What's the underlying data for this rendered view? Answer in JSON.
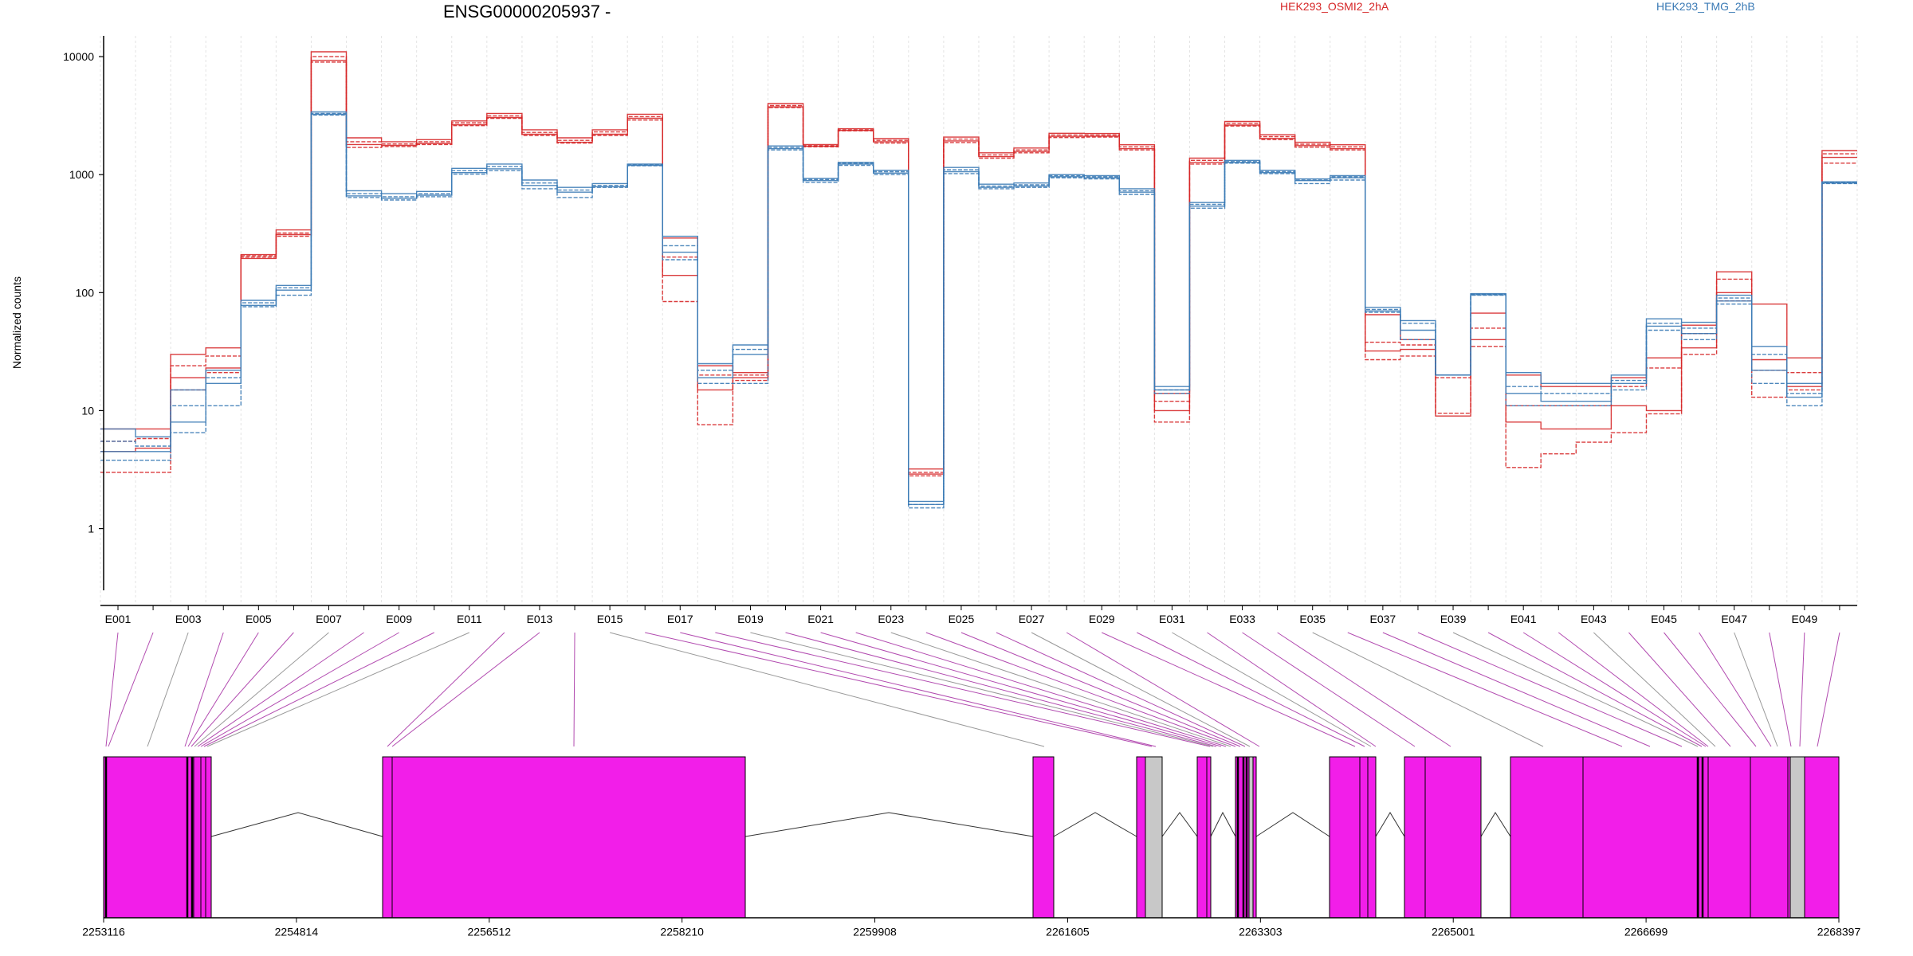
{
  "chart_data": {
    "type": "line",
    "title": "ENSG00000205937 -",
    "ylabel": "Normalized counts",
    "yscale": "log",
    "ylim": [
      0.3,
      15000
    ],
    "yticks": [
      "1",
      "10",
      "100",
      "1000",
      "10000"
    ],
    "xticks": [
      "E001",
      "E003",
      "E005",
      "E007",
      "E009",
      "E011",
      "E013",
      "E015",
      "E017",
      "E019",
      "E021",
      "E023",
      "E025",
      "E027",
      "E029",
      "E031",
      "E033",
      "E035",
      "E037",
      "E039",
      "E041",
      "E043",
      "E045",
      "E047",
      "E049"
    ],
    "exons": [
      "E001",
      "E002",
      "E003",
      "E004",
      "E005",
      "E006",
      "E007",
      "E008",
      "E009",
      "E010",
      "E011",
      "E012",
      "E013",
      "E014",
      "E015",
      "E016",
      "E017",
      "E018",
      "E019",
      "E020",
      "E021",
      "E022",
      "E023",
      "E024",
      "E025",
      "E026",
      "E027",
      "E028",
      "E029",
      "E030",
      "E031",
      "E032",
      "E033",
      "E034",
      "E035",
      "E036",
      "E037",
      "E038",
      "E039",
      "E040",
      "E041",
      "E042",
      "E043",
      "E044",
      "E045",
      "E046",
      "E047",
      "E048",
      "E049",
      "E050"
    ],
    "legend": [
      {
        "name": "HEK293_OSMI2_2hA",
        "color": "#d62728"
      },
      {
        "name": "HEK293_TMG_2hB",
        "color": "#3a7ab5"
      }
    ],
    "series": [
      {
        "group": "HEK293_OSMI2_2hA",
        "values": [
          7.0,
          7.0,
          30,
          34,
          210,
          340,
          11000,
          2050,
          1900,
          1980,
          2850,
          3300,
          2400,
          2050,
          2400,
          3250,
          290,
          24,
          21,
          4000,
          1800,
          2450,
          2020,
          3.2,
          2080,
          1530,
          1680,
          2240,
          2230,
          1790,
          14,
          1380,
          2820,
          2180,
          1880,
          1790,
          65,
          40,
          20,
          67,
          20,
          16,
          16,
          19,
          28,
          53,
          150,
          27,
          28,
          1600
        ]
      },
      {
        "group": "HEK293_OSMI2_2hA",
        "values": [
          5.5,
          5.8,
          24,
          29,
          200,
          320,
          10000,
          1900,
          1820,
          1900,
          2750,
          3150,
          2280,
          1950,
          2300,
          3100,
          200,
          20,
          20,
          3850,
          1760,
          2400,
          1950,
          3.0,
          2000,
          1470,
          1620,
          2170,
          2170,
          1720,
          12,
          1320,
          2720,
          2100,
          1810,
          1720,
          38,
          36,
          19,
          50,
          11,
          11,
          11,
          16,
          23,
          45,
          130,
          22,
          21,
          1500
        ]
      },
      {
        "group": "HEK293_OSMI2_2hA",
        "values": [
          4.5,
          4.8,
          19,
          23,
          195,
          310,
          9300,
          1800,
          1770,
          1840,
          2650,
          3050,
          2200,
          1880,
          2200,
          3000,
          140,
          15,
          19,
          3750,
          1740,
          2370,
          1900,
          2.9,
          1930,
          1420,
          1570,
          2110,
          2120,
          1660,
          10,
          1270,
          2630,
          2030,
          1760,
          1660,
          32,
          33,
          9,
          40,
          8,
          7,
          7,
          11,
          10,
          34,
          100,
          80,
          16,
          1400
        ]
      },
      {
        "group": "HEK293_OSMI2_2hA",
        "values": [
          3.0,
          3.0,
          15,
          21,
          205,
          300,
          9000,
          1700,
          1730,
          1800,
          2600,
          3000,
          2150,
          1850,
          2150,
          2900,
          84,
          7.6,
          18,
          3700,
          1720,
          2350,
          1850,
          2.8,
          1870,
          1380,
          1530,
          2060,
          2080,
          1620,
          8,
          1230,
          2580,
          1980,
          1710,
          1620,
          27,
          29,
          9.5,
          35,
          3.3,
          4.3,
          5.4,
          6.5,
          9.4,
          30,
          85,
          13,
          15,
          1250
        ]
      },
      {
        "group": "HEK293_TMG_2hB",
        "values": [
          7.0,
          6.0,
          15,
          22,
          86,
          115,
          3400,
          730,
          690,
          720,
          1130,
          1230,
          900,
          780,
          840,
          1230,
          300,
          25,
          36,
          1750,
          930,
          1270,
          1090,
          1.7,
          1150,
          830,
          850,
          1000,
          980,
          760,
          16,
          580,
          1320,
          1090,
          920,
          980,
          75,
          58,
          20,
          98,
          21,
          17,
          17,
          20,
          60,
          56,
          95,
          35,
          17,
          870
        ]
      },
      {
        "group": "HEK293_TMG_2hB",
        "values": [
          5.5,
          5.0,
          11,
          19,
          82,
          110,
          3300,
          690,
          650,
          690,
          1080,
          1170,
          850,
          740,
          810,
          1210,
          250,
          22,
          33,
          1700,
          910,
          1250,
          1060,
          1.6,
          1100,
          800,
          820,
          980,
          960,
          730,
          15,
          560,
          1290,
          1060,
          900,
          960,
          72,
          55,
          20,
          97,
          16,
          14,
          14,
          18,
          55,
          50,
          90,
          30,
          14,
          860
        ]
      },
      {
        "group": "HEK293_TMG_2hB",
        "values": [
          4.5,
          4.5,
          8,
          17,
          78,
          105,
          3250,
          660,
          630,
          670,
          1040,
          1120,
          810,
          710,
          790,
          1200,
          220,
          19,
          30,
          1660,
          890,
          1230,
          1030,
          1.6,
          1060,
          780,
          800,
          960,
          940,
          710,
          15,
          540,
          1270,
          1040,
          890,
          940,
          70,
          48,
          20,
          96,
          14,
          12,
          12,
          17,
          52,
          45,
          85,
          22,
          13,
          850
        ]
      },
      {
        "group": "HEK293_TMG_2hB",
        "values": [
          3.8,
          3.8,
          6.5,
          11,
          76,
          95,
          3200,
          640,
          610,
          650,
          1010,
          1080,
          760,
          640,
          780,
          1190,
          190,
          17,
          17,
          1620,
          860,
          1200,
          1000,
          1.5,
          1020,
          760,
          780,
          940,
          920,
          680,
          14,
          520,
          1250,
          1020,
          840,
          900,
          68,
          40,
          20,
          95,
          11,
          11,
          11,
          15,
          48,
          40,
          80,
          17,
          11,
          840
        ]
      }
    ],
    "gene_coords_ticks": [
      "2253116",
      "2254814",
      "2256512",
      "2258210",
      "2259908",
      "2261605",
      "2263303",
      "2265001",
      "2266699",
      "2268397"
    ]
  }
}
